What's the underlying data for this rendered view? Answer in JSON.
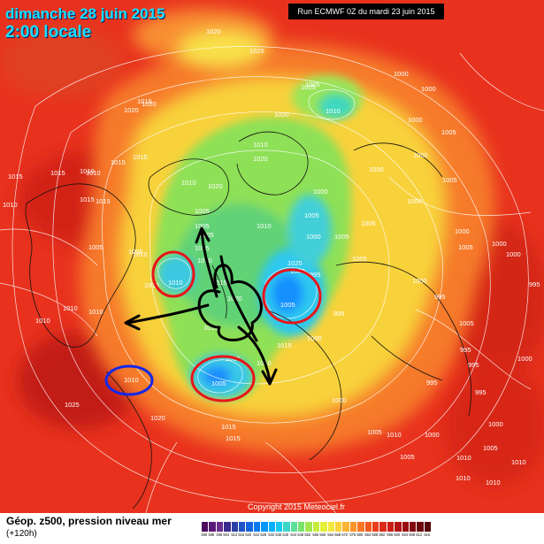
{
  "header": {
    "date": "dimanche 28 juin 2015",
    "local_time": "2:00 locale",
    "run_info": "Run ECMWF 0Z du mardi 23 juin 2015"
  },
  "footer": {
    "title": "Géop. z500, pression niveau mer",
    "subtitle": "(+120h)",
    "copyright": "Copyright 2015 Meteociel.fr"
  },
  "scale": {
    "labels": [
      "480",
      "488",
      "496",
      "504",
      "512",
      "516",
      "520",
      "524",
      "528",
      "532",
      "536",
      "540",
      "544",
      "548",
      "552",
      "556",
      "560",
      "564",
      "568",
      "572",
      "576",
      "580",
      "584",
      "588",
      "592",
      "596",
      "600",
      "604",
      "608",
      "612",
      "616"
    ],
    "colors": [
      "#4b0c5e",
      "#5a1a78",
      "#6a2c8e",
      "#3a2b8c",
      "#2e3fa7",
      "#1f52c8",
      "#1464e0",
      "#0a7cf0",
      "#0396ff",
      "#00b0ff",
      "#16c8f0",
      "#3ad6c8",
      "#5ade9a",
      "#78e26e",
      "#a2e64c",
      "#c8ec3c",
      "#e6f03c",
      "#f4e83c",
      "#fad23a",
      "#fcb432",
      "#fb952a",
      "#f87624",
      "#f3581f",
      "#eb3e1c",
      "#de2a19",
      "#c91c16",
      "#b21213",
      "#9a0c10",
      "#830a0d",
      "#6c0909",
      "#560808"
    ]
  },
  "pressure_labels": [
    "1020",
    "1025",
    "1015",
    "1020",
    "1010",
    "1015",
    "1015",
    "1010",
    "1015",
    "1010",
    "1015",
    "1010",
    "1015",
    "1005",
    "1010",
    "1010",
    "1010",
    "1015",
    "1010",
    "1020",
    "1015",
    "1005",
    "1010",
    "1020",
    "1005",
    "1000",
    "1000",
    "1000",
    "1000",
    "1005",
    "1000",
    "1005",
    "1000",
    "1005",
    "1000",
    "1005",
    "995",
    "1005",
    "1005",
    "1000",
    "1000",
    "1005",
    "1000",
    "1005",
    "995",
    "995",
    "1000",
    "995",
    "995",
    "1000",
    "1000",
    "995",
    "1000",
    "995",
    "1000",
    "1005",
    "1010",
    "1005",
    "1000",
    "1010",
    "1005",
    "1010",
    "1010",
    "1010",
    "1015",
    "1015",
    "1020",
    "1020",
    "1025",
    "1015",
    "1005",
    "1010",
    "1010",
    "1010",
    "1005",
    "1005",
    "1010",
    "1015",
    "1005",
    "1010",
    "1015",
    "1020",
    "1010",
    "1015",
    "1020",
    "1025",
    "995",
    "1000",
    "1005",
    "1000",
    "1005",
    "1010"
  ],
  "annotations": {
    "low_circles": [
      "1010",
      "1000",
      "995"
    ],
    "high_circle": "1010",
    "arrows_center": "1015"
  }
}
